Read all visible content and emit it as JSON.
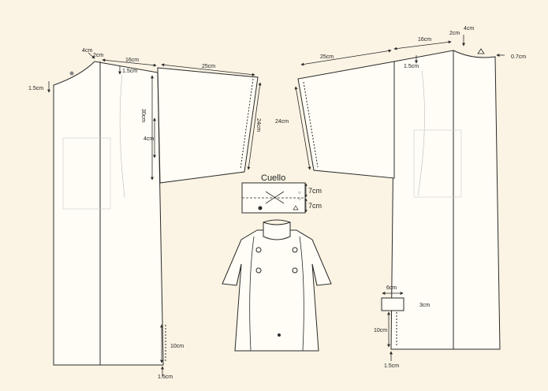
{
  "diagram": {
    "title": "Sewing pattern: double-breasted coat with collar",
    "collar_label": "Cuello",
    "colors": {
      "background": "#fbf4e4",
      "line": "#2a2a2a",
      "fabric": "#fffdf5"
    },
    "left_panel": {
      "top_4cm": "4cm",
      "top_2cm": "2cm",
      "shoulder_1_5cm": "1.5cm",
      "side_1_5cm": "1.5cm",
      "width_16cm": "16cm",
      "sleeve_25cm": "25cm",
      "depth_30cm": "30cm",
      "mid_4cm": "4cm",
      "sleeve_24cm": "24cm",
      "slit_10cm": "10cm",
      "hem_1_5cm": "1.5cm"
    },
    "right_panel": {
      "top_2cm": "2cm",
      "top_4cm": "4cm",
      "width_16cm": "16cm",
      "sleeve_25cm": "25cm",
      "shoulder_1_5cm": "1.5cm",
      "neck_0_7cm": "0.7cm",
      "sleeve_24cm": "24cm",
      "pocket_6cm": "6cm",
      "pocket_3cm": "3cm",
      "slit_10cm": "10cm",
      "hem_1_5cm": "1.5cm"
    },
    "collar": {
      "upper_7cm": "7cm",
      "lower_7cm": "7cm"
    }
  }
}
